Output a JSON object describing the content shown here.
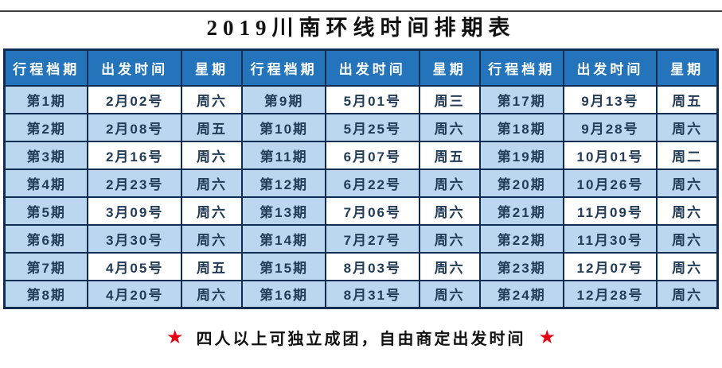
{
  "page": {
    "title": "2019川南环线时间排期表"
  },
  "table": {
    "header": [
      "行程档期",
      "出发时间",
      "星期",
      "行程档期",
      "出发时间",
      "星期",
      "行程档期",
      "出发时间",
      "星期"
    ],
    "rows": [
      [
        "第1期",
        "2月02号",
        "周六",
        "第9期",
        "5月01号",
        "周三",
        "第17期",
        "9月13号",
        "周五"
      ],
      [
        "第2期",
        "2月08号",
        "周五",
        "第10期",
        "5月25号",
        "周六",
        "第18期",
        "9月28号",
        "周六"
      ],
      [
        "第3期",
        "2月16号",
        "周六",
        "第11期",
        "6月07号",
        "周五",
        "第19期",
        "10月01号",
        "周二"
      ],
      [
        "第4期",
        "2月23号",
        "周六",
        "第12期",
        "6月22号",
        "周六",
        "第20期",
        "10月26号",
        "周六"
      ],
      [
        "第5期",
        "3月09号",
        "周六",
        "第13期",
        "7月06号",
        "周六",
        "第21期",
        "11月09号",
        "周六"
      ],
      [
        "第6期",
        "3月30号",
        "周六",
        "第14期",
        "7月27号",
        "周六",
        "第22期",
        "11月30号",
        "周六"
      ],
      [
        "第7期",
        "4月05号",
        "周五",
        "第15期",
        "8月03号",
        "周六",
        "第23期",
        "12月07号",
        "周六"
      ],
      [
        "第8期",
        "4月20号",
        "周六",
        "第16期",
        "8月31号",
        "周六",
        "第24期",
        "12月28号",
        "周六"
      ]
    ]
  },
  "footer": {
    "star": "★",
    "note": "四人以上可独立成团，自由商定出发时间"
  },
  "colors": {
    "header_bg": "#2374bb",
    "cell_light_blue": "#bad7ef",
    "grid_border": "#0f2d52",
    "cell_text": "#223b57",
    "header_text": "#ffffff",
    "star_red": "#e60012",
    "title_text": "#111111"
  }
}
